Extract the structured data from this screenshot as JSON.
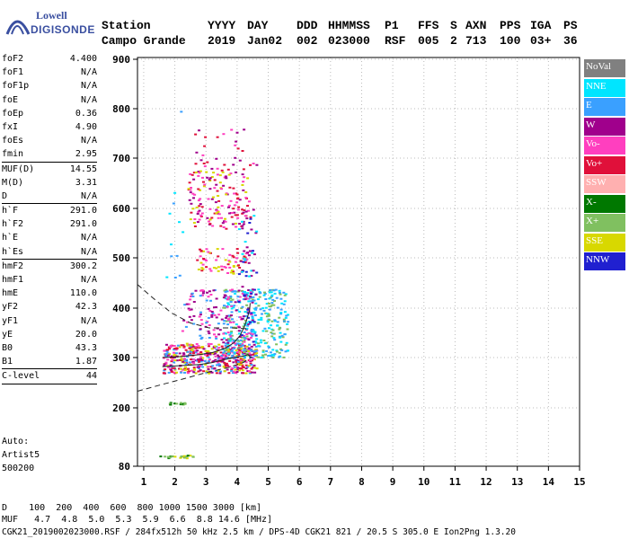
{
  "logo": {
    "line1": "Lowell",
    "line2": "DIGISONDE"
  },
  "header": {
    "row1": [
      {
        "text": "Station",
        "x": 113
      },
      {
        "text": "YYYY",
        "x": 231
      },
      {
        "text": "DAY",
        "x": 275
      },
      {
        "text": "DDD",
        "x": 330
      },
      {
        "text": "HHMMSS",
        "x": 365
      },
      {
        "text": "P1",
        "x": 428
      },
      {
        "text": "FFS",
        "x": 465
      },
      {
        "text": "S",
        "x": 501
      },
      {
        "text": "AXN",
        "x": 518
      },
      {
        "text": "PPS",
        "x": 556
      },
      {
        "text": "IGA",
        "x": 590
      },
      {
        "text": "PS",
        "x": 627
      }
    ],
    "row2": [
      {
        "text": "Campo Grande",
        "x": 113
      },
      {
        "text": "2019",
        "x": 231
      },
      {
        "text": "Jan02",
        "x": 275
      },
      {
        "text": "002",
        "x": 330
      },
      {
        "text": "023000",
        "x": 365
      },
      {
        "text": "RSF",
        "x": 428
      },
      {
        "text": "005",
        "x": 465
      },
      {
        "text": "2",
        "x": 501
      },
      {
        "text": "713",
        "x": 518
      },
      {
        "text": "100",
        "x": 556
      },
      {
        "text": "03+",
        "x": 590
      },
      {
        "text": "36",
        "x": 627
      }
    ]
  },
  "params": [
    {
      "label": "foF2",
      "value": "4.400"
    },
    {
      "label": "foF1",
      "value": "N/A"
    },
    {
      "label": "foF1p",
      "value": "N/A"
    },
    {
      "label": "foE",
      "value": "N/A"
    },
    {
      "label": "foEp",
      "value": "0.36"
    },
    {
      "label": "fxI",
      "value": "4.90"
    },
    {
      "label": "foEs",
      "value": "N/A"
    },
    {
      "label": "fmin",
      "value": "2.95",
      "sep": true
    },
    {
      "label": "MUF(D)",
      "value": "14.55"
    },
    {
      "label": "M(D)",
      "value": "3.31"
    },
    {
      "label": "D",
      "value": "N/A",
      "sep": true
    },
    {
      "label": "h`F",
      "value": "291.0"
    },
    {
      "label": "h`F2",
      "value": "291.0"
    },
    {
      "label": "h`E",
      "value": "N/A"
    },
    {
      "label": "h`Es",
      "value": "N/A",
      "sep": true
    },
    {
      "label": "hmF2",
      "value": "300.2"
    },
    {
      "label": "hmF1",
      "value": "N/A"
    },
    {
      "label": "hmE",
      "value": "110.0"
    },
    {
      "label": "yF2",
      "value": "42.3"
    },
    {
      "label": "yF1",
      "value": "N/A"
    },
    {
      "label": "yE",
      "value": "20.0"
    },
    {
      "label": "B0",
      "value": "43.3"
    },
    {
      "label": "B1",
      "value": "1.87",
      "sep": true
    },
    {
      "label": "C-level",
      "value": "44",
      "sep": true
    }
  ],
  "auto": {
    "line1": "Auto:",
    "line2": "Artist5",
    "line3": "500200"
  },
  "legend": [
    {
      "label": "NoVal",
      "color": "#808080"
    },
    {
      "label": "NNE",
      "color": "#00e5ff"
    },
    {
      "label": "E",
      "color": "#3aa0ff"
    },
    {
      "label": "W",
      "color": "#a0008c"
    },
    {
      "label": "Vo-",
      "color": "#ff3fbf"
    },
    {
      "label": "Vo+",
      "color": "#e0103a"
    },
    {
      "label": "SSW",
      "color": "#ffb0b0"
    },
    {
      "label": "X-",
      "color": "#007800"
    },
    {
      "label": "X+",
      "color": "#80c060"
    },
    {
      "label": "SSE",
      "color": "#d8d800"
    },
    {
      "label": "NNW",
      "color": "#2020d0"
    }
  ],
  "bottom": {
    "line1": "D    100  200  400  600  800 1000 1500 3000 [km]",
    "line2": "MUF   4.7  4.8  5.0  5.3  5.9  6.6  8.8 14.6 [MHz]",
    "line3": "CGK21_2019002023000.RSF / 284fx512h 50 kHz 2.5 km / DPS-4D CGK21 821 / 20.5 S 305.0 E Ion2Png 1.3.20"
  },
  "chart_data": {
    "type": "scatter",
    "title": "",
    "xlabel": "",
    "ylabel": "",
    "xlim": [
      0.8,
      15
    ],
    "ylim": [
      80,
      900
    ],
    "x_ticks": [
      1,
      2,
      3,
      4,
      5,
      6,
      7,
      8,
      9,
      10,
      11,
      12,
      13,
      14,
      15
    ],
    "y_ticks": [
      80,
      200,
      300,
      400,
      500,
      600,
      700,
      800,
      900
    ],
    "grid": "dotted",
    "legend_placement": "right",
    "echo_clusters": [
      {
        "name": "F trace main",
        "x": [
          1.6,
          4.6
        ],
        "y": [
          270,
          330
        ],
        "colors": [
          "#e0103a",
          "#ff3fbf",
          "#a0008c",
          "#d8d800",
          "#3aa0ff"
        ],
        "n": 500
      },
      {
        "name": "F spread east",
        "x": [
          3.5,
          5.6
        ],
        "y": [
          300,
          440
        ],
        "colors": [
          "#3aa0ff",
          "#00e5ff",
          "#80c060"
        ],
        "n": 300
      },
      {
        "name": "F upper spread",
        "x": [
          2.2,
          4.5
        ],
        "y": [
          330,
          440
        ],
        "colors": [
          "#a0008c",
          "#ff3fbf",
          "#3aa0ff"
        ],
        "n": 160
      },
      {
        "name": "2F trace",
        "x": [
          2.4,
          4.4
        ],
        "y": [
          560,
          680
        ],
        "colors": [
          "#e0103a",
          "#a0008c",
          "#d8d800",
          "#ff3fbf"
        ],
        "n": 160
      },
      {
        "name": "mid trace",
        "x": [
          2.6,
          4.3
        ],
        "y": [
          470,
          520
        ],
        "colors": [
          "#d8d800",
          "#e0103a",
          "#ff3fbf"
        ],
        "n": 70
      },
      {
        "name": "vertical streak",
        "x": [
          4.0,
          4.6
        ],
        "y": [
          330,
          600
        ],
        "colors": [
          "#a0008c",
          "#2020d0",
          "#00e5ff"
        ],
        "n": 80
      },
      {
        "name": "upper sparse",
        "x": [
          2.5,
          4.6
        ],
        "y": [
          680,
          760
        ],
        "colors": [
          "#a0008c",
          "#e0103a",
          "#ff3fbf"
        ],
        "n": 30
      },
      {
        "name": "low band 210",
        "x": [
          1.8,
          2.3
        ],
        "y": [
          208,
          212
        ],
        "colors": [
          "#007800",
          "#80c060"
        ],
        "n": 14
      },
      {
        "name": "low band 100",
        "x": [
          1.5,
          2.6
        ],
        "y": [
          98,
          104
        ],
        "colors": [
          "#007800",
          "#d8d800",
          "#80c060"
        ],
        "n": 22
      },
      {
        "name": "isolated points",
        "x": [
          1.6,
          2.4
        ],
        "y": [
          430,
          870
        ],
        "colors": [
          "#00e5ff",
          "#3aa0ff"
        ],
        "n": 12
      }
    ],
    "curves": [
      {
        "name": "profile",
        "style": "solid",
        "x": [
          1.6,
          2.2,
          2.8,
          3.2,
          3.6,
          3.9,
          4.1,
          4.25,
          4.4,
          4.42
        ],
        "y": [
          300,
          302,
          306,
          310,
          318,
          330,
          345,
          365,
          395,
          410
        ]
      },
      {
        "name": "profile-lower",
        "style": "solid",
        "x": [
          1.6,
          2.2,
          2.8,
          3.2,
          3.6,
          3.9,
          4.2,
          4.35,
          4.45
        ],
        "y": [
          282,
          284,
          286,
          290,
          296,
          300,
          303,
          306,
          300
        ]
      },
      {
        "name": "extrapolation-lower",
        "style": "dashed",
        "x": [
          0.8,
          1.5,
          2.3,
          3.0,
          3.7,
          4.2,
          4.45
        ],
        "y": [
          233,
          245,
          258,
          270,
          280,
          290,
          300
        ]
      },
      {
        "name": "extrapolation-upper",
        "style": "dashed",
        "x": [
          0.8,
          1.3,
          1.9,
          2.5,
          3.1,
          3.8,
          4.4
        ],
        "y": [
          447,
          420,
          390,
          370,
          360,
          360,
          358
        ]
      }
    ]
  }
}
